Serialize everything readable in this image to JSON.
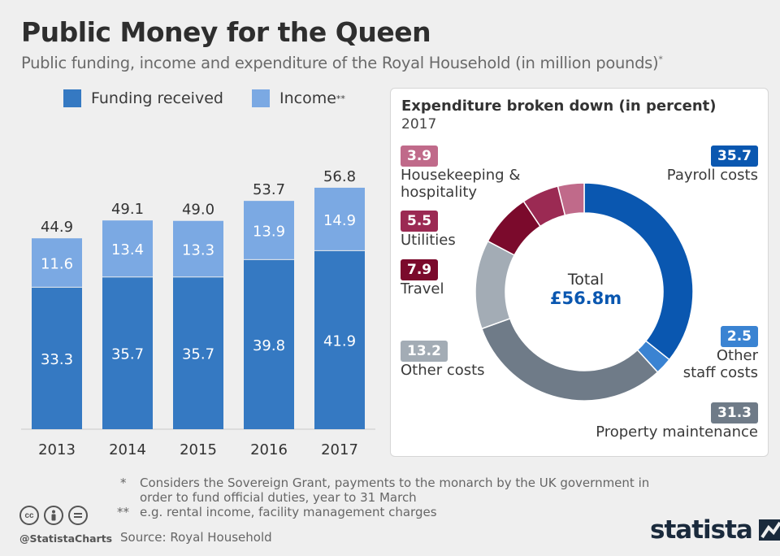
{
  "header": {
    "title": "Public Money for the Queen",
    "subtitle": "Public funding, income and expenditure of the Royal Household (in million pounds)",
    "subtitle_mark": "*"
  },
  "legend": {
    "funding_label": "Funding received",
    "income_label": "Income",
    "income_mark": "**"
  },
  "colors": {
    "funding": "#3579c2",
    "income": "#7ba9e3",
    "payroll": "#0a57b0",
    "other_staff": "#3a83d2",
    "property": "#6f7b88",
    "other_costs": "#a3acb5",
    "travel": "#7b0a2c",
    "utilities": "#9b2a53",
    "housekeeping": "#c06a8a"
  },
  "chart_data": [
    {
      "type": "bar",
      "stacked": true,
      "categories": [
        "2013",
        "2014",
        "2015",
        "2016",
        "2017"
      ],
      "series": [
        {
          "name": "Funding received",
          "values": [
            33.3,
            35.7,
            35.7,
            39.8,
            41.9
          ]
        },
        {
          "name": "Income",
          "values": [
            11.6,
            13.4,
            13.3,
            13.9,
            14.9
          ]
        }
      ],
      "totals": [
        "44.9",
        "49.1",
        "49.0",
        "53.7",
        "56.8"
      ],
      "funding_labels": [
        "33.3",
        "35.7",
        "35.7",
        "39.8",
        "41.9"
      ],
      "income_labels": [
        "11.6",
        "13.4",
        "13.3",
        "13.9",
        "14.9"
      ],
      "ylim": [
        0,
        60
      ]
    },
    {
      "type": "pie",
      "donut": true,
      "title": "Expenditure broken down (in percent)",
      "year": "2017",
      "total_label": "Total",
      "total_value": "£56.8m",
      "slices": [
        {
          "key": "payroll",
          "name": "Payroll costs",
          "value": 35.7,
          "label": "35.7"
        },
        {
          "key": "other_staff",
          "name": "Other staff costs",
          "value": 2.5,
          "label": "2.5"
        },
        {
          "key": "property",
          "name": "Property maintenance",
          "value": 31.3,
          "label": "31.3"
        },
        {
          "key": "other_costs",
          "name": "Other costs",
          "value": 13.2,
          "label": "13.2"
        },
        {
          "key": "travel",
          "name": "Travel",
          "value": 7.9,
          "label": "7.9"
        },
        {
          "key": "utilities",
          "name": "Utilities",
          "value": 5.5,
          "label": "5.5"
        },
        {
          "key": "housekeeping",
          "name": "Housekeeping & hospitality",
          "value": 3.9,
          "label": "3.9"
        }
      ]
    }
  ],
  "annotations": {
    "payroll": {
      "value": "35.7",
      "line1": "Payroll costs"
    },
    "other_staff": {
      "value": "2.5",
      "line1": "Other",
      "line2": "staff costs"
    },
    "property": {
      "value": "31.3",
      "line1": "Property maintenance"
    },
    "other_costs": {
      "value": "13.2",
      "line1": "Other costs"
    },
    "travel": {
      "value": "7.9",
      "line1": "Travel"
    },
    "utilities": {
      "value": "5.5",
      "line1": "Utilities"
    },
    "housekeeping": {
      "value": "3.9",
      "line1": "Housekeeping &",
      "line2": "hospitality"
    }
  },
  "footer": {
    "note1_mark": "*",
    "note1": "Considers the Sovereign Grant, payments to the monarch by the UK government in order to fund official duties, year to 31 March",
    "note2_mark": "**",
    "note2": "e.g. rental income, facility management charges",
    "source": "Source: Royal Household",
    "handle": "@StatistaCharts",
    "logo": "statista",
    "cc_icons": [
      "cc-icon",
      "by-icon",
      "nd-icon"
    ]
  }
}
